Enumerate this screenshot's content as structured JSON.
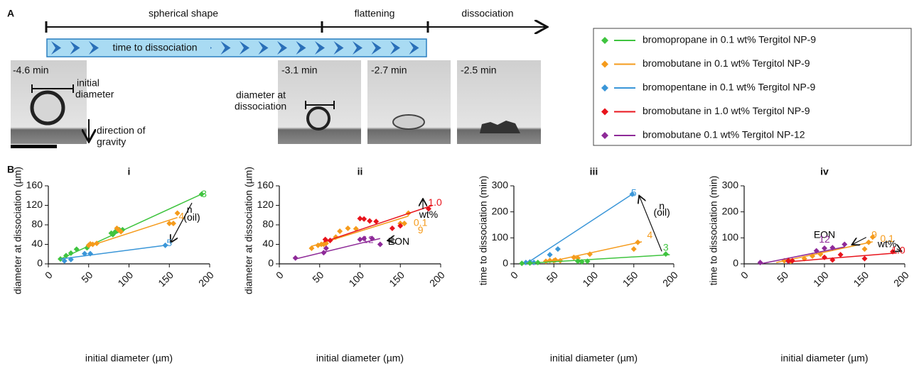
{
  "panel_a": {
    "label": "A",
    "timeline": {
      "stages": [
        "spherical shape",
        "flattening",
        "dissociation"
      ],
      "bar_label": "time to dissociation"
    },
    "photos": [
      {
        "time": "-4.6 min",
        "notes": [
          "initial",
          "diameter",
          "direction of",
          "gravity"
        ]
      },
      {
        "time": "-3.1 min",
        "notes": [
          "diameter at",
          "dissociation"
        ]
      },
      {
        "time": "-2.7 min"
      },
      {
        "time": "-2.5 min"
      }
    ]
  },
  "legend": {
    "entries": [
      {
        "name": "bromopropane in 0.1 wt% Tergitol NP-9",
        "color": "#3fc43f"
      },
      {
        "name": "bromobutane in 0.1 wt% Tergitol NP-9",
        "color": "#f59b1c"
      },
      {
        "name": "bromopentane in 0.1 wt% Tergitol NP-9",
        "color": "#3a96d8"
      },
      {
        "name": "bromobutane in 1.0 wt% Tergitol NP-9",
        "color": "#e8141c"
      },
      {
        "name": "bromobutane 0.1 wt% Tergitol NP-12",
        "color": "#8e2a98"
      }
    ]
  },
  "panel_b_label": "B",
  "chart_data": [
    {
      "type": "scatter",
      "title": "i",
      "x_label": "initial diameter (µm)",
      "y_label": "diameter at dissociation (µm)",
      "xlim": [
        0,
        200
      ],
      "ylim": [
        0,
        160
      ],
      "xticks": [
        0,
        50,
        100,
        150,
        200
      ],
      "yticks": [
        0,
        40,
        80,
        120,
        160
      ],
      "series": [
        {
          "color": "#3fc43f",
          "x": [
            15,
            22,
            28,
            35,
            48,
            50,
            78,
            80,
            83,
            88,
            92,
            190
          ],
          "values": [
            10,
            17,
            22,
            30,
            33,
            38,
            63,
            60,
            66,
            70,
            70,
            143
          ],
          "fit_x": [
            15,
            190
          ],
          "fit_y": [
            10,
            143
          ]
        },
        {
          "color": "#f59b1c",
          "x": [
            50,
            52,
            55,
            60,
            85,
            87,
            90,
            150,
            155,
            160
          ],
          "values": [
            38,
            41,
            40,
            42,
            73,
            70,
            66,
            83,
            83,
            104
          ],
          "fit_x": [
            48,
            160
          ],
          "fit_y": [
            35,
            95
          ]
        },
        {
          "color": "#3a96d8",
          "x": [
            20,
            28,
            45,
            52,
            145
          ],
          "values": [
            6,
            9,
            21,
            21,
            38
          ],
          "fit_x": [
            15,
            145
          ],
          "fit_y": [
            10,
            38
          ]
        }
      ],
      "annotations": [
        {
          "text": "3",
          "color": "#3fc43f"
        },
        {
          "text": "4",
          "color": "#f59b1c"
        },
        {
          "text": "5",
          "color": "#3a96d8"
        },
        {
          "text": "n",
          "color": "#000000"
        },
        {
          "text": "(oil)",
          "color": "#000000"
        }
      ]
    },
    {
      "type": "scatter",
      "title": "ii",
      "x_label": "initial diameter (µm)",
      "y_label": "diameter at dissociation (µm)",
      "xlim": [
        0,
        200
      ],
      "ylim": [
        0,
        160
      ],
      "xticks": [
        0,
        50,
        100,
        150,
        200
      ],
      "yticks": [
        0,
        40,
        80,
        120,
        160
      ],
      "series": [
        {
          "color": "#f59b1c",
          "x": [
            40,
            48,
            52,
            55,
            58,
            70,
            75,
            85,
            95,
            150,
            155,
            160
          ],
          "values": [
            32,
            38,
            40,
            40,
            42,
            55,
            67,
            73,
            72,
            83,
            83,
            104
          ],
          "fit_x": [
            40,
            160
          ],
          "fit_y": [
            36,
            98
          ]
        },
        {
          "color": "#e8141c",
          "x": [
            57,
            63,
            100,
            105,
            112,
            120,
            140,
            150,
            185
          ],
          "values": [
            50,
            48,
            93,
            92,
            88,
            87,
            73,
            78,
            113
          ],
          "fit_x": [
            55,
            190
          ],
          "fit_y": [
            45,
            120
          ]
        },
        {
          "color": "#8e2a98",
          "x": [
            20,
            55,
            58,
            100,
            105,
            115,
            125
          ],
          "values": [
            12,
            23,
            32,
            50,
            52,
            52,
            40
          ],
          "fit_x": [
            20,
            125
          ],
          "fit_y": [
            10,
            52
          ]
        }
      ],
      "annotations": [
        {
          "text": "1.0",
          "color": "#e8141c"
        },
        {
          "text": "wt%",
          "color": "#000000"
        },
        {
          "text": "0.1",
          "color": "#f59b1c"
        },
        {
          "text": "9",
          "color": "#f59b1c"
        },
        {
          "text": "12",
          "color": "#8e2a98"
        },
        {
          "text": "EON",
          "color": "#000000"
        }
      ]
    },
    {
      "type": "scatter",
      "title": "iii",
      "x_label": "initial diameter (µm)",
      "y_label": "time to dissociation (min)",
      "xlim": [
        0,
        200
      ],
      "ylim": [
        0,
        300
      ],
      "xticks": [
        0,
        50,
        100,
        150,
        200
      ],
      "yticks": [
        0,
        100,
        200,
        300
      ],
      "series": [
        {
          "color": "#3a96d8",
          "x": [
            15,
            20,
            25,
            45,
            55,
            148
          ],
          "values": [
            5,
            7,
            5,
            35,
            57,
            268
          ],
          "fit_x": [
            15,
            148
          ],
          "fit_y": [
            0,
            268
          ]
        },
        {
          "color": "#f59b1c",
          "x": [
            40,
            45,
            50,
            52,
            58,
            75,
            80,
            95,
            150,
            155
          ],
          "values": [
            10,
            13,
            12,
            15,
            12,
            25,
            22,
            37,
            57,
            83
          ],
          "fit_x": [
            40,
            160
          ],
          "fit_y": [
            5,
            85
          ]
        },
        {
          "color": "#3fc43f",
          "x": [
            10,
            20,
            30,
            80,
            85,
            92,
            190
          ],
          "values": [
            2,
            3,
            5,
            10,
            8,
            10,
            38
          ],
          "fit_x": [
            15,
            195
          ],
          "fit_y": [
            2,
            35
          ]
        }
      ],
      "annotations": [
        {
          "text": "5",
          "color": "#3a96d8"
        },
        {
          "text": "n",
          "color": "#000000"
        },
        {
          "text": "(oil)",
          "color": "#000000"
        },
        {
          "text": "4",
          "color": "#f59b1c"
        },
        {
          "text": "3",
          "color": "#3fc43f"
        }
      ]
    },
    {
      "type": "scatter",
      "title": "iv",
      "x_label": "initial diameter (µm)",
      "y_label": "time to dissociation (min)",
      "xlim": [
        0,
        200
      ],
      "ylim": [
        0,
        300
      ],
      "xticks": [
        0,
        50,
        100,
        150,
        200
      ],
      "yticks": [
        0,
        100,
        200,
        300
      ],
      "series": [
        {
          "color": "#f59b1c",
          "x": [
            50,
            55,
            58,
            75,
            85,
            95,
            150,
            155,
            160
          ],
          "values": [
            12,
            14,
            10,
            20,
            30,
            37,
            57,
            83,
            103
          ],
          "fit_x": [
            40,
            160
          ],
          "fit_y": [
            5,
            85
          ]
        },
        {
          "color": "#8e2a98",
          "x": [
            20,
            55,
            90,
            100,
            110,
            125
          ],
          "values": [
            5,
            10,
            50,
            60,
            62,
            75
          ],
          "fit_x": [
            20,
            125
          ],
          "fit_y": [
            0,
            65
          ]
        },
        {
          "color": "#e8141c",
          "x": [
            55,
            60,
            100,
            110,
            120,
            150,
            185
          ],
          "values": [
            12,
            12,
            25,
            15,
            35,
            20,
            47
          ],
          "fit_x": [
            55,
            190
          ],
          "fit_y": [
            8,
            42
          ]
        }
      ],
      "annotations": [
        {
          "text": "EON",
          "color": "#000000"
        },
        {
          "text": "9",
          "color": "#f59b1c"
        },
        {
          "text": "12",
          "color": "#8e2a98"
        },
        {
          "text": "0.1",
          "color": "#f59b1c"
        },
        {
          "text": "wt%",
          "color": "#000000"
        },
        {
          "text": "1.0",
          "color": "#e8141c"
        }
      ]
    }
  ]
}
